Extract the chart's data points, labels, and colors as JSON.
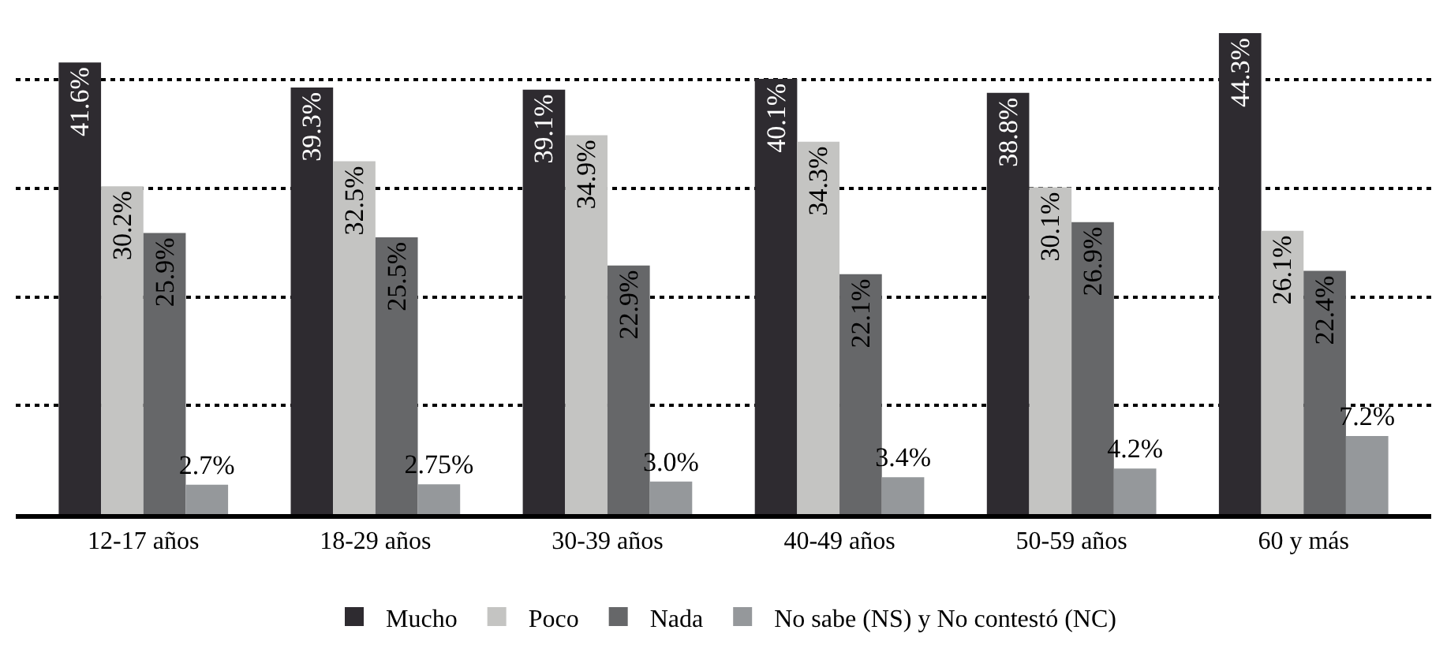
{
  "chart_data": {
    "type": "bar",
    "categories": [
      "12-17 años",
      "18-29 años",
      "30-39 años",
      "40-49 años",
      "50-59 años",
      "60 y más"
    ],
    "series": [
      {
        "name": "Mucho",
        "color": "#2e2b30",
        "values": [
          41.6,
          39.3,
          39.1,
          40.1,
          38.8,
          44.3
        ],
        "value_labels": [
          "41.6%",
          "39.3%",
          "39.1%",
          "40.1%",
          "38.8%",
          "44.3%"
        ]
      },
      {
        "name": "Poco",
        "color": "#c4c4c2",
        "values": [
          30.2,
          32.5,
          34.9,
          34.3,
          30.1,
          26.1
        ],
        "value_labels": [
          "30.2%",
          "32.5%",
          "34.9%",
          "34.3%",
          "30.1%",
          "26.1%"
        ]
      },
      {
        "name": "Nada",
        "color": "#666769",
        "values": [
          25.9,
          25.5,
          22.9,
          22.1,
          26.9,
          22.4
        ],
        "value_labels": [
          "25.9%",
          "25.5%",
          "22.9%",
          "22.1%",
          "26.9%",
          "22.4%"
        ]
      },
      {
        "name": "No sabe (NS) y No contestó (NC)",
        "color": "#95989b",
        "values": [
          2.7,
          2.75,
          3.0,
          3.4,
          4.2,
          7.2
        ],
        "value_labels": [
          "2.7%",
          "2.75%",
          "3.0%",
          "3.4%",
          "4.2%",
          "7.2%"
        ]
      }
    ],
    "yticks": [
      {
        "value": 10,
        "label": null
      },
      {
        "value": 20,
        "label": null
      },
      {
        "value": 30,
        "label": null
      },
      {
        "value": 40,
        "label": null
      }
    ],
    "grid": "y",
    "legend": "bottom",
    "tick_labels": "x"
  }
}
